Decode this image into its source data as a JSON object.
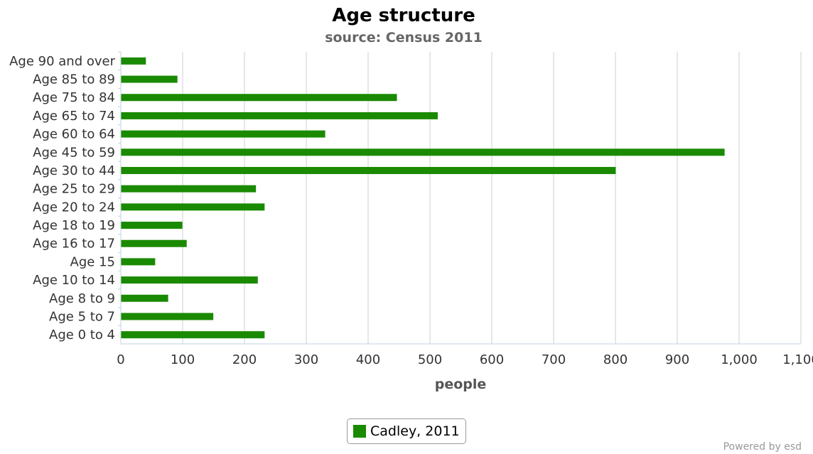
{
  "chart_data": {
    "type": "bar",
    "orientation": "horizontal",
    "title": "Age structure",
    "subtitle": "source: Census 2011",
    "xlabel": "people",
    "ylabel": "",
    "xlim": [
      0,
      1100
    ],
    "ticks": [
      "0",
      "100",
      "200",
      "300",
      "400",
      "500",
      "600",
      "700",
      "800",
      "900",
      "1,000",
      "1,100"
    ],
    "tick_values": [
      0,
      100,
      200,
      300,
      400,
      500,
      600,
      700,
      800,
      900,
      1000,
      1100
    ],
    "grid": true,
    "categories": [
      "Age 90 and over",
      "Age 85 to 89",
      "Age 75 to 84",
      "Age 65 to 74",
      "Age 60 to 64",
      "Age 45 to 59",
      "Age 30 to 44",
      "Age 25 to 29",
      "Age 20 to 24",
      "Age 18 to 19",
      "Age 16 to 17",
      "Age 15",
      "Age 10 to 14",
      "Age 8 to 9",
      "Age 5 to 7",
      "Age 0 to 4"
    ],
    "series": [
      {
        "name": "Cadley, 2011",
        "color": "#1a8a00",
        "values": [
          40,
          91,
          446,
          512,
          330,
          976,
          800,
          218,
          232,
          99,
          106,
          55,
          221,
          76,
          149,
          232
        ]
      }
    ],
    "legend_position": "bottom-center"
  },
  "credit": "Powered by esd"
}
